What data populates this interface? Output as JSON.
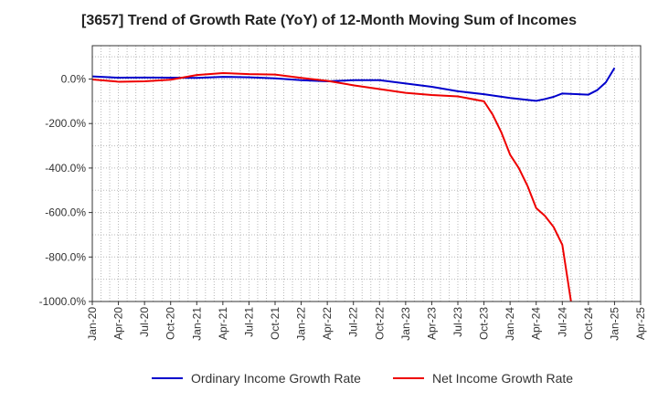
{
  "chart_data": {
    "type": "line",
    "title": "[3657]  Trend of Growth Rate (YoY) of 12-Month Moving Sum of Incomes",
    "xlabel": "",
    "ylabel": "",
    "ylim": [
      -1000,
      150
    ],
    "yticks": [
      0,
      -200,
      -400,
      -600,
      -800,
      -1000
    ],
    "ytick_labels": [
      "0.0%",
      "-200.0%",
      "-400.0%",
      "-600.0%",
      "-800.0%",
      "-1000.0%"
    ],
    "xlim": [
      "2020-01",
      "2025-04"
    ],
    "xtick_labels": [
      "Jan-20",
      "Apr-20",
      "Jul-20",
      "Oct-20",
      "Jan-21",
      "Apr-21",
      "Jul-21",
      "Oct-21",
      "Jan-22",
      "Apr-22",
      "Jul-22",
      "Oct-22",
      "Jan-23",
      "Apr-23",
      "Jul-23",
      "Oct-23",
      "Jan-24",
      "Apr-24",
      "Jul-24",
      "Oct-24",
      "Jan-25",
      "Apr-25"
    ],
    "grid": true,
    "legend_position": "bottom",
    "series": [
      {
        "name": "Ordinary Income Growth Rate",
        "color": "#0000cc",
        "points": [
          [
            "2020-01",
            12
          ],
          [
            "2020-04",
            6
          ],
          [
            "2020-07",
            7
          ],
          [
            "2020-10",
            6
          ],
          [
            "2021-01",
            5
          ],
          [
            "2021-04",
            10
          ],
          [
            "2021-07",
            8
          ],
          [
            "2021-10",
            3
          ],
          [
            "2022-01",
            -5
          ],
          [
            "2022-04",
            -10
          ],
          [
            "2022-07",
            -5
          ],
          [
            "2022-10",
            -5
          ],
          [
            "2023-01",
            -20
          ],
          [
            "2023-04",
            -35
          ],
          [
            "2023-07",
            -55
          ],
          [
            "2023-10",
            -68
          ],
          [
            "2024-01",
            -85
          ],
          [
            "2024-04",
            -98
          ],
          [
            "2024-05",
            -90
          ],
          [
            "2024-06",
            -80
          ],
          [
            "2024-07",
            -65
          ],
          [
            "2024-10",
            -70
          ],
          [
            "2024-11",
            -50
          ],
          [
            "2024-12",
            -15
          ],
          [
            "2025-01",
            50
          ]
        ]
      },
      {
        "name": "Net Income Growth Rate",
        "color": "#ee0000",
        "points": [
          [
            "2020-01",
            -2
          ],
          [
            "2020-04",
            -12
          ],
          [
            "2020-07",
            -10
          ],
          [
            "2020-10",
            -3
          ],
          [
            "2021-01",
            18
          ],
          [
            "2021-04",
            27
          ],
          [
            "2021-07",
            22
          ],
          [
            "2021-10",
            20
          ],
          [
            "2022-01",
            5
          ],
          [
            "2022-04",
            -8
          ],
          [
            "2022-07",
            -28
          ],
          [
            "2022-10",
            -45
          ],
          [
            "2023-01",
            -62
          ],
          [
            "2023-04",
            -72
          ],
          [
            "2023-07",
            -78
          ],
          [
            "2023-10",
            -100
          ],
          [
            "2023-11",
            -160
          ],
          [
            "2023-12",
            -240
          ],
          [
            "2024-01",
            -340
          ],
          [
            "2024-02",
            -400
          ],
          [
            "2024-03",
            -480
          ],
          [
            "2024-04",
            -580
          ],
          [
            "2024-05",
            -615
          ],
          [
            "2024-06",
            -665
          ],
          [
            "2024-07",
            -745
          ],
          [
            "2024-08",
            -1000
          ]
        ]
      }
    ]
  }
}
